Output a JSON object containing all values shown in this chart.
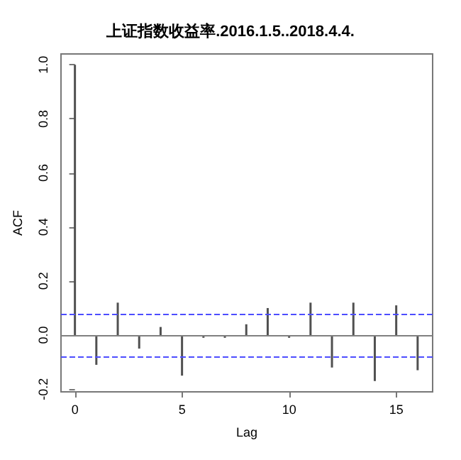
{
  "chart_data": {
    "type": "bar",
    "title": "上证指数收益率.2016.1.5..2018.4.4.",
    "xlabel": "Lag",
    "ylabel": "ACF",
    "x": [
      0,
      1,
      2,
      3,
      4,
      5,
      6,
      7,
      8,
      9,
      10,
      11,
      12,
      13,
      14,
      15,
      16
    ],
    "values": [
      1.0,
      -0.11,
      0.12,
      -0.05,
      0.03,
      -0.15,
      -0.01,
      -0.01,
      0.04,
      0.1,
      -0.01,
      0.12,
      -0.12,
      0.12,
      -0.17,
      0.11,
      -0.13
    ],
    "color": "#505050",
    "xlim": [
      -0.65,
      16.7
    ],
    "xticks": [
      0,
      5,
      10,
      15
    ],
    "ylim": [
      -0.21,
      1.04
    ],
    "yticks": [
      -0.2,
      {
        "value": 0,
        "label": "0.0"
      },
      0.2,
      0.4,
      0.6,
      0.8,
      {
        "value": 1,
        "label": "1.0"
      }
    ],
    "ref_lines": [
      {
        "axis": "y",
        "value": 0,
        "color": "#808080",
        "line_style": "solid"
      },
      {
        "axis": "y",
        "value": 0.083,
        "color": "#4d4dff",
        "line_style": "dashed"
      },
      {
        "axis": "y",
        "value": -0.083,
        "color": "#4d4dff",
        "line_style": "dashed"
      }
    ]
  }
}
